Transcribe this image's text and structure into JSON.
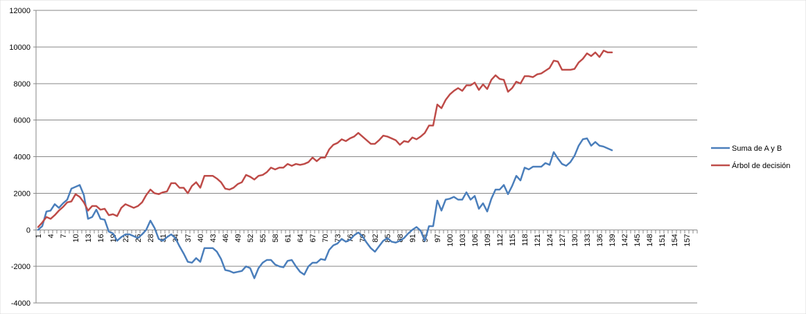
{
  "chart_data": {
    "type": "line",
    "title": "",
    "xlabel": "",
    "ylabel": "",
    "ylim": [
      -4000,
      12000
    ],
    "yticks": [
      -4000,
      -2000,
      0,
      2000,
      4000,
      6000,
      8000,
      10000,
      12000
    ],
    "x_count": 159,
    "x_tick_labels": [
      "1",
      "4",
      "7",
      "10",
      "13",
      "16",
      "19",
      "22",
      "25",
      "28",
      "31",
      "34",
      "37",
      "40",
      "43",
      "46",
      "49",
      "52",
      "55",
      "58",
      "61",
      "64",
      "67",
      "70",
      "73",
      "76",
      "79",
      "82",
      "85",
      "88",
      "91",
      "94",
      "97",
      "100",
      "103",
      "106",
      "109",
      "112",
      "115",
      "118",
      "121",
      "124",
      "127",
      "130",
      "133",
      "136",
      "139",
      "142",
      "145",
      "148",
      "151",
      "154",
      "157"
    ],
    "grid": "horizontal major gridlines",
    "legend_position": "right",
    "series": [
      {
        "name": "Suma de A y B",
        "color": "#4a7ebb",
        "x": [
          1,
          2,
          3,
          4,
          5,
          6,
          7,
          8,
          9,
          10,
          11,
          12,
          13,
          14,
          15,
          16,
          17,
          18,
          19,
          20,
          21,
          22,
          23,
          24,
          25,
          26,
          27,
          28,
          29,
          30,
          31,
          32,
          33,
          34,
          35,
          36,
          37,
          38,
          39,
          40,
          41,
          42,
          43,
          44,
          45,
          46,
          47,
          48,
          49,
          50,
          51,
          52,
          53,
          54,
          55,
          56,
          57,
          58,
          59,
          60,
          61,
          62,
          63,
          64,
          65,
          66,
          67,
          68,
          69,
          70,
          71,
          72,
          73,
          74,
          75,
          76,
          77,
          78,
          79,
          80,
          81,
          82,
          83,
          84,
          85,
          86,
          87,
          88,
          89,
          90,
          91,
          92,
          93,
          94,
          95,
          96,
          97,
          98,
          99,
          100,
          101,
          102,
          103,
          104,
          105,
          106,
          107,
          108,
          109,
          110,
          111,
          112,
          113,
          114,
          115,
          116,
          117,
          118,
          119,
          120,
          121,
          122,
          123,
          124,
          125,
          126,
          127,
          128,
          129,
          130,
          131,
          132,
          133,
          134,
          135,
          136,
          137,
          138,
          139
        ],
        "values": [
          0,
          200,
          1000,
          1050,
          1400,
          1200,
          1450,
          1650,
          2250,
          2350,
          2450,
          1900,
          600,
          700,
          1100,
          600,
          550,
          -100,
          -200,
          -600,
          -400,
          -250,
          -250,
          -350,
          -450,
          -250,
          0,
          500,
          100,
          -500,
          -600,
          -400,
          -250,
          -450,
          -900,
          -1300,
          -1750,
          -1800,
          -1550,
          -1750,
          -1000,
          -1000,
          -1000,
          -1200,
          -1600,
          -2200,
          -2250,
          -2350,
          -2300,
          -2250,
          -2000,
          -2100,
          -2650,
          -2100,
          -1800,
          -1650,
          -1650,
          -1900,
          -2000,
          -2050,
          -1700,
          -1650,
          -2000,
          -2300,
          -2450,
          -2000,
          -1800,
          -1800,
          -1600,
          -1650,
          -1100,
          -850,
          -750,
          -500,
          -650,
          -550,
          -300,
          -150,
          -350,
          -700,
          -1000,
          -1200,
          -900,
          -600,
          -450,
          -650,
          -700,
          -600,
          -450,
          -200,
          0,
          150,
          -50,
          -600,
          200,
          200,
          1600,
          1050,
          1650,
          1700,
          1800,
          1650,
          1650,
          2050,
          1650,
          1850,
          1150,
          1450,
          1000,
          1700,
          2200,
          2200,
          2450,
          1950,
          2400,
          2950,
          2700,
          3400,
          3300,
          3450,
          3450,
          3450,
          3650,
          3550,
          4250,
          3900,
          3600,
          3500,
          3700,
          4050,
          4600,
          4950,
          5000,
          4600,
          4800,
          4600,
          4550,
          4450,
          4350
        ]
      },
      {
        "name": "Árbol de decisión",
        "color": "#be4b48",
        "x": [
          1,
          2,
          3,
          4,
          5,
          6,
          7,
          8,
          9,
          10,
          11,
          12,
          13,
          14,
          15,
          16,
          17,
          18,
          19,
          20,
          21,
          22,
          23,
          24,
          25,
          26,
          27,
          28,
          29,
          30,
          31,
          32,
          33,
          34,
          35,
          36,
          37,
          38,
          39,
          40,
          41,
          42,
          43,
          44,
          45,
          46,
          47,
          48,
          49,
          50,
          51,
          52,
          53,
          54,
          55,
          56,
          57,
          58,
          59,
          60,
          61,
          62,
          63,
          64,
          65,
          66,
          67,
          68,
          69,
          70,
          71,
          72,
          73,
          74,
          75,
          76,
          77,
          78,
          79,
          80,
          81,
          82,
          83,
          84,
          85,
          86,
          87,
          88,
          89,
          90,
          91,
          92,
          93,
          94,
          95,
          96,
          97,
          98,
          99,
          100,
          101,
          102,
          103,
          104,
          105,
          106,
          107,
          108,
          109,
          110,
          111,
          112,
          113,
          114,
          115,
          116,
          117,
          118,
          119,
          120,
          121,
          122,
          123,
          124,
          125,
          126,
          127,
          128,
          129,
          130,
          131,
          132,
          133,
          134,
          135,
          136,
          137,
          138,
          139
        ],
        "values": [
          150,
          400,
          700,
          600,
          800,
          1050,
          1250,
          1500,
          1550,
          1950,
          1800,
          1500,
          1050,
          1300,
          1300,
          1100,
          1150,
          800,
          850,
          750,
          1200,
          1400,
          1300,
          1200,
          1300,
          1500,
          1900,
          2200,
          2000,
          1950,
          2050,
          2100,
          2550,
          2550,
          2300,
          2300,
          2000,
          2400,
          2600,
          2300,
          2950,
          2950,
          2950,
          2800,
          2600,
          2250,
          2200,
          2300,
          2500,
          2600,
          3000,
          2900,
          2750,
          2950,
          3000,
          3150,
          3400,
          3300,
          3400,
          3400,
          3600,
          3500,
          3600,
          3550,
          3600,
          3700,
          3950,
          3750,
          3950,
          3950,
          4400,
          4650,
          4750,
          4950,
          4850,
          5000,
          5100,
          5300,
          5100,
          4900,
          4700,
          4700,
          4900,
          5150,
          5100,
          5000,
          4900,
          4650,
          4850,
          4800,
          5050,
          4950,
          5100,
          5300,
          5700,
          5700,
          6850,
          6650,
          7100,
          7400,
          7600,
          7750,
          7600,
          7900,
          7900,
          8050,
          7650,
          7950,
          7700,
          8200,
          8450,
          8250,
          8200,
          7550,
          7750,
          8100,
          8000,
          8400,
          8400,
          8350,
          8500,
          8550,
          8700,
          8850,
          9250,
          9200,
          8750,
          8750,
          8750,
          8800,
          9150,
          9350,
          9650,
          9500,
          9700,
          9450,
          9800,
          9700,
          9700
        ]
      }
    ]
  }
}
